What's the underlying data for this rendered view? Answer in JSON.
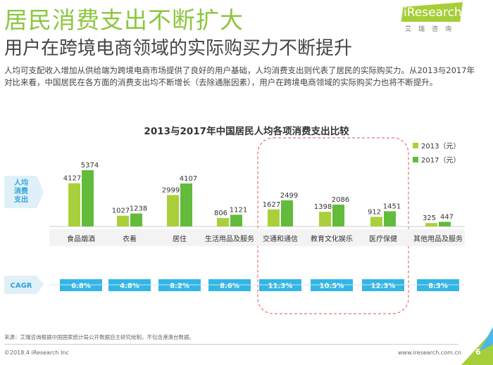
{
  "header": {
    "title": "居民消费支出不断扩大",
    "subtitle": "用户在跨境电商领域的实际购买力不断提升",
    "logo": "iResearch",
    "logo_sub": "艾瑞咨询"
  },
  "description": "人均可支配收入增加从供给端为跨境电商市场提供了良好的用户基础，人均消费支出则代表了居民的实际购买力。从2013与2017年对比来看，中国居民在各方面的消费支出均不断增长（去除通胀因素），用户在跨境电商领域的实际购买力也将不断提升。",
  "chart_data": {
    "type": "bar",
    "title": "2013与2017年中国居民人均各项消费支出比较",
    "ylabel": "人均消费支出",
    "categories": [
      "食品烟酒",
      "衣着",
      "居住",
      "生活用品及服务",
      "交通和通信",
      "教育文化娱乐",
      "医疗保健",
      "其他用品及服务"
    ],
    "series": [
      {
        "name": "2013（元）",
        "color": "#a9d03b",
        "values": [
          4127,
          1027,
          2999,
          806,
          1627,
          1398,
          912,
          325
        ]
      },
      {
        "name": "2017（元）",
        "color": "#63bb3c",
        "values": [
          5374,
          1238,
          4107,
          1121,
          2499,
          2086,
          1451,
          447
        ]
      }
    ],
    "cagr_label": "CAGR",
    "cagr": [
      "6.8%",
      "4.8%",
      "8.2%",
      "8.6%",
      "11.3%",
      "10.5%",
      "12.3%",
      "8.3%"
    ],
    "cagr_color": "#33b5e5",
    "highlighted": [
      "交通和通信",
      "教育文化娱乐",
      "医疗保健"
    ],
    "legend": "top-right"
  },
  "footer": {
    "source": "来源：艾瑞咨询根据中国国家统计局公开数据自主研究绘制，不包含港澳台数据。",
    "copyright": "©2018.4 iResearch Inc",
    "url": "www.iresearch.com.cn",
    "page": "6"
  }
}
